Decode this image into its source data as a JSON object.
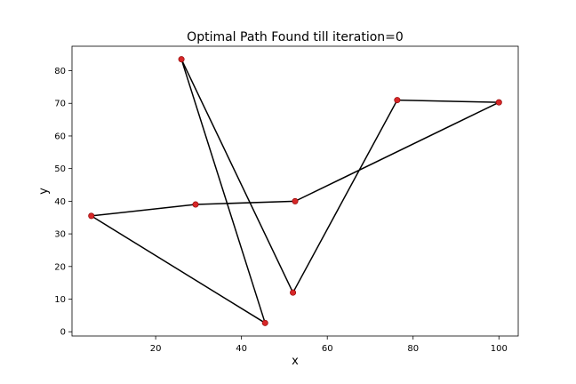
{
  "chart_data": {
    "type": "line",
    "title": "Optimal Path Found till iteration=0",
    "xlabel": "x",
    "ylabel": "y",
    "xlim": [
      0.5,
      104.5
    ],
    "ylim": [
      -1.3,
      87.5
    ],
    "xticks": [
      20,
      40,
      60,
      80,
      100
    ],
    "yticks": [
      0,
      10,
      20,
      30,
      40,
      50,
      60,
      70,
      80
    ],
    "grid": false,
    "legend": "none",
    "line_color": "#000000",
    "marker_color": "#d62728",
    "marker_edge_color": "#8b0000",
    "series": [
      {
        "x": [
          26,
          52,
          76.3,
          100,
          52.5,
          29.3,
          5,
          45.5,
          26
        ],
        "y": [
          83.5,
          12,
          71,
          70.3,
          40,
          39,
          35.5,
          2.7,
          83.5
        ]
      }
    ]
  }
}
